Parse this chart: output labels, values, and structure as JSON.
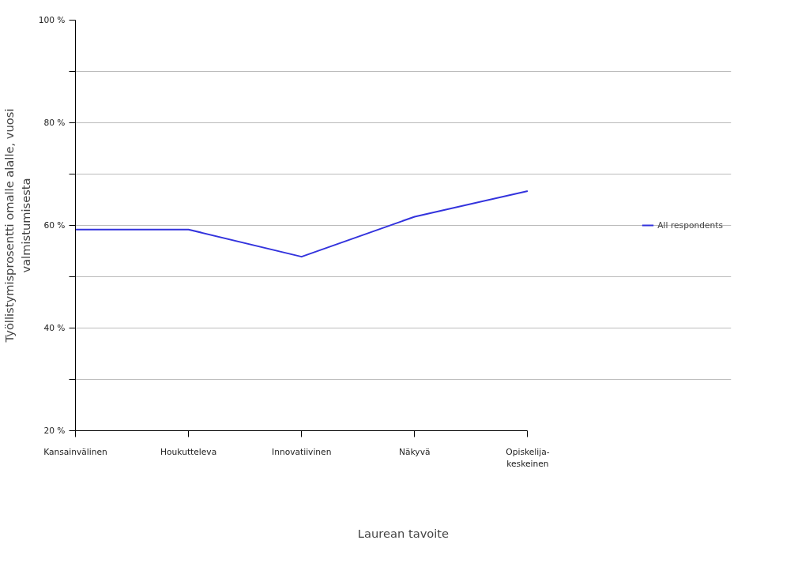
{
  "chart_data": {
    "type": "line",
    "xlabel": "Laurean tavoite",
    "ylabel": "Työllistymisprosentti omalle alalle, vuosi\nvalmistumisesta",
    "categories": [
      "Kansainvälinen",
      "Houkutteleva",
      "Innovatiivinen",
      "Näkyvä",
      "Opiskelija-\nkeskeinen"
    ],
    "series": [
      {
        "name": "All respondents",
        "color": "#3333dd",
        "values": [
          59.2,
          59.2,
          53.9,
          61.7,
          66.7
        ]
      }
    ],
    "ylim": [
      20,
      100
    ],
    "yticks": [
      {
        "value": 20,
        "label": "20 %"
      },
      {
        "value": 30,
        "label": null
      },
      {
        "value": 40,
        "label": "40 %"
      },
      {
        "value": 50,
        "label": null
      },
      {
        "value": 60,
        "label": "60 %"
      },
      {
        "value": 70,
        "label": null
      },
      {
        "value": 80,
        "label": "80 %"
      },
      {
        "value": 90,
        "label": null
      },
      {
        "value": 100,
        "label": "100 %"
      }
    ],
    "grid": "y",
    "legend": "right",
    "marker": "none",
    "line_style": "solid"
  }
}
